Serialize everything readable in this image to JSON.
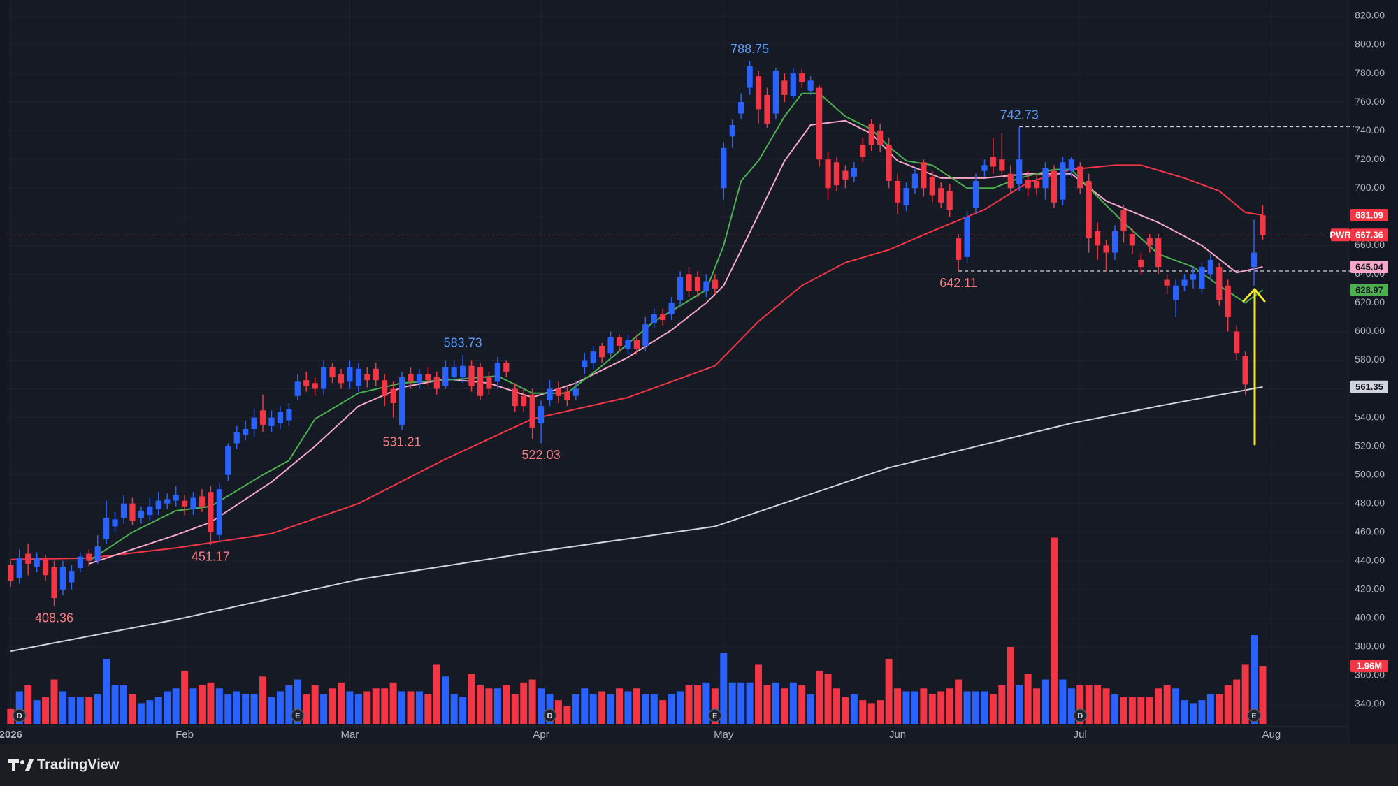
{
  "chart_data": {
    "type": "candlestick",
    "symbol": "PWR",
    "branding": "TradingView",
    "up_color": "#2962ff",
    "down_color": "#f23645",
    "grid": true,
    "last_price_line": true,
    "xlim": [
      -1.231,
      153.85
    ],
    "xticks": [
      {
        "value": 0,
        "label": "2026"
      },
      {
        "value": 20,
        "label": "Feb"
      },
      {
        "value": 39,
        "label": "Mar"
      },
      {
        "value": 61,
        "label": "Apr"
      },
      {
        "value": 82,
        "label": "May"
      },
      {
        "value": 102,
        "label": "Jun"
      },
      {
        "value": 123,
        "label": "Jul"
      },
      {
        "value": 145,
        "label": "Aug"
      }
    ],
    "ylim": [
      324.4,
      831.2
    ],
    "yticks": [
      {
        "value": 820,
        "label": "820.00"
      },
      {
        "value": 800,
        "label": "800.00"
      },
      {
        "value": 780,
        "label": "780.00"
      },
      {
        "value": 760,
        "label": "760.00"
      },
      {
        "value": 740,
        "label": "740.00"
      },
      {
        "value": 720,
        "label": "720.00"
      },
      {
        "value": 700,
        "label": "700.00"
      },
      {
        "value": 680,
        "label": "680.00"
      },
      {
        "value": 660,
        "label": "660.00"
      },
      {
        "value": 640,
        "label": "640.00"
      },
      {
        "value": 620,
        "label": "620.00"
      },
      {
        "value": 600,
        "label": "600.00"
      },
      {
        "value": 580,
        "label": "580.00"
      },
      {
        "value": 560,
        "label": "560.00"
      },
      {
        "value": 540,
        "label": "540.00"
      },
      {
        "value": 520,
        "label": "520.00"
      },
      {
        "value": 500,
        "label": "500.00"
      },
      {
        "value": 480,
        "label": "480.00"
      },
      {
        "value": 460,
        "label": "460.00"
      },
      {
        "value": 440,
        "label": "440.00"
      },
      {
        "value": 420,
        "label": "420.00"
      },
      {
        "value": 400,
        "label": "400.00"
      },
      {
        "value": 380,
        "label": "380.00"
      },
      {
        "value": 360,
        "label": "360.00"
      },
      {
        "value": 340,
        "label": "340.00"
      }
    ],
    "open": [
      437,
      428,
      445,
      436,
      441,
      436,
      420,
      425,
      435,
      445,
      440,
      455,
      464,
      470,
      480,
      470,
      472,
      476,
      480,
      482,
      482,
      476,
      485,
      488,
      458,
      500,
      522,
      528,
      532,
      545,
      534,
      536,
      538,
      555,
      566,
      564,
      560,
      575,
      570,
      565,
      562,
      570,
      574,
      566,
      560,
      535,
      570,
      564,
      570,
      568,
      562,
      568,
      568,
      576,
      575,
      568,
      565,
      578,
      560,
      555,
      556,
      536,
      552,
      560,
      558,
      555,
      575,
      578,
      590,
      585,
      596,
      588,
      594,
      590,
      606,
      612,
      612,
      622,
      640,
      638,
      628,
      636,
      700,
      736,
      752,
      770,
      778,
      765,
      752,
      775,
      764,
      780,
      768,
      770,
      720,
      718,
      712,
      708,
      730,
      745,
      740,
      730,
      705,
      688,
      700,
      718,
      708,
      700,
      698,
      665,
      652,
      686,
      712,
      722,
      720,
      710,
      703,
      706,
      705,
      700,
      712,
      692,
      712,
      715,
      705,
      670,
      660,
      655,
      685,
      668,
      650,
      665,
      665,
      636,
      622,
      632,
      636,
      630,
      640,
      645,
      632,
      600,
      583,
      645,
      681
    ],
    "high": [
      440,
      448,
      452,
      446,
      444,
      440,
      440,
      437,
      446,
      448,
      458,
      482,
      474,
      486,
      484,
      478,
      484,
      488,
      487,
      492,
      486,
      488,
      490,
      492,
      494,
      522,
      534,
      538,
      546,
      556,
      545,
      548,
      550,
      570,
      572,
      568,
      580,
      578,
      574,
      580,
      578,
      575,
      578,
      570,
      565,
      572,
      575,
      574,
      575,
      572,
      580,
      580,
      583.73,
      580,
      578,
      572,
      582,
      580,
      564,
      560,
      560,
      552,
      566,
      565,
      562,
      565,
      585,
      590,
      592,
      600,
      598,
      598,
      598,
      610,
      616,
      616,
      624,
      642,
      645,
      642,
      640,
      640,
      732,
      748,
      766,
      788.75,
      782,
      770,
      784,
      780,
      784,
      783,
      778,
      772,
      725,
      722,
      716,
      718,
      735,
      748,
      745,
      735,
      710,
      704,
      714,
      720,
      712,
      704,
      703,
      668,
      684,
      710,
      720,
      735,
      738,
      716,
      742.73,
      712,
      710,
      718,
      716,
      722,
      722,
      718,
      710,
      676,
      664,
      674,
      688,
      672,
      655,
      668,
      668,
      640,
      636,
      640,
      645,
      648,
      654,
      648,
      636,
      604,
      586,
      678,
      688
    ],
    "low": [
      422,
      424,
      430,
      432,
      426,
      408.36,
      416,
      420,
      432,
      436,
      438,
      452,
      460,
      466,
      465,
      466,
      468,
      472,
      476,
      478,
      472,
      472,
      474,
      451.17,
      454,
      496,
      518,
      524,
      526,
      530,
      530,
      532,
      534,
      552,
      558,
      555,
      556,
      564,
      560,
      560,
      558,
      561,
      562,
      548,
      540,
      531.21,
      560,
      560,
      562,
      556,
      560,
      565,
      564,
      558,
      552,
      556,
      560,
      568,
      544,
      544,
      525,
      522.03,
      548,
      550,
      548,
      552,
      570,
      574,
      578,
      582,
      586,
      584,
      584,
      586,
      602,
      604,
      608,
      618,
      624,
      624,
      624,
      626,
      692,
      728,
      748,
      765,
      745,
      742,
      748,
      760,
      762,
      770,
      765,
      715,
      692,
      698,
      700,
      704,
      718,
      726,
      725,
      700,
      682,
      684,
      696,
      694,
      690,
      686,
      680,
      642.11,
      648,
      682,
      708,
      710,
      708,
      696,
      698,
      694,
      695,
      692,
      686,
      688,
      708,
      696,
      655,
      650,
      642,
      650,
      662,
      654,
      640,
      655,
      640,
      626,
      610,
      628,
      630,
      626,
      636,
      618,
      600,
      580,
      556,
      632,
      664
    ],
    "close": [
      426,
      442,
      438,
      442,
      430,
      414,
      436,
      433,
      443,
      440,
      450,
      470,
      469,
      480,
      468,
      475,
      478,
      482,
      483,
      486,
      478,
      484,
      478,
      460,
      490,
      520,
      530,
      532,
      540,
      535,
      540,
      544,
      546,
      565,
      562,
      560,
      575,
      568,
      564,
      575,
      574,
      566,
      566,
      555,
      550,
      568,
      565,
      570,
      566,
      560,
      575,
      575,
      576,
      562,
      555,
      560,
      578,
      572,
      548,
      548,
      533,
      548,
      560,
      555,
      552,
      560,
      580,
      586,
      582,
      596,
      590,
      594,
      588,
      605,
      612,
      608,
      620,
      638,
      628,
      628,
      635,
      630,
      728,
      744,
      760,
      785,
      755,
      745,
      782,
      765,
      780,
      774,
      775,
      720,
      700,
      702,
      706,
      714,
      722,
      730,
      730,
      705,
      690,
      700,
      710,
      700,
      695,
      690,
      685,
      650,
      680,
      705,
      716,
      715,
      712,
      700,
      720,
      700,
      700,
      714,
      690,
      718,
      720,
      700,
      665,
      660,
      655,
      670,
      670,
      660,
      645,
      660,
      645,
      632,
      632,
      636,
      640,
      645,
      650,
      622,
      610,
      585,
      563,
      655,
      667.36
    ],
    "volume": [
      0.5,
      1.1,
      1.3,
      0.8,
      0.9,
      1.5,
      1.1,
      0.9,
      0.9,
      0.9,
      1.0,
      2.2,
      1.3,
      1.3,
      1.0,
      0.7,
      0.8,
      0.9,
      1.1,
      1.2,
      1.8,
      1.2,
      1.3,
      1.4,
      1.2,
      1.0,
      1.1,
      1.0,
      1.0,
      1.6,
      0.9,
      1.1,
      1.3,
      1.5,
      1.0,
      1.3,
      1.0,
      1.2,
      1.4,
      1.1,
      1.0,
      1.1,
      1.2,
      1.2,
      1.4,
      1.1,
      1.1,
      1.1,
      1.0,
      2.0,
      1.6,
      1.0,
      0.9,
      1.7,
      1.3,
      1.2,
      1.2,
      1.3,
      1.0,
      1.4,
      1.5,
      1.2,
      1.0,
      0.8,
      0.6,
      1.0,
      1.2,
      1.0,
      1.1,
      1.0,
      1.2,
      1.1,
      1.2,
      1.0,
      1.0,
      0.8,
      1.0,
      1.1,
      1.3,
      1.3,
      1.4,
      1.2,
      2.4,
      1.4,
      1.4,
      1.4,
      2.0,
      1.3,
      1.4,
      1.2,
      1.4,
      1.3,
      1.0,
      1.8,
      1.7,
      1.2,
      0.9,
      1.0,
      0.8,
      0.7,
      0.8,
      2.2,
      1.2,
      1.1,
      1.1,
      1.2,
      1.0,
      1.1,
      1.2,
      1.5,
      1.1,
      1.1,
      1.1,
      1.0,
      1.3,
      2.6,
      1.3,
      1.7,
      1.2,
      1.5,
      6.3,
      1.5,
      1.2,
      1.3,
      1.3,
      1.3,
      1.2,
      1.0,
      0.9,
      0.9,
      0.9,
      0.9,
      1.2,
      1.3,
      1.2,
      0.8,
      0.7,
      0.8,
      1.0,
      1.0,
      1.3,
      1.5,
      2.0,
      3.0,
      1.96
    ],
    "volume_ylim": [
      0,
      6.43
    ],
    "volume_last_label": "1.96M",
    "ma": [
      {
        "color": "#f23645",
        "badge_text_color": "#ffffff",
        "x": [
          0,
          9,
          19,
          30,
          40,
          50,
          60,
          71,
          81,
          86,
          91,
          96,
          101,
          106,
          112,
          117,
          122,
          127,
          130,
          135,
          139,
          142,
          144
        ],
        "values": [
          441,
          442,
          449,
          459,
          480,
          511,
          539,
          554,
          576,
          607,
          632,
          648,
          657,
          670,
          685,
          704,
          713,
          716,
          716,
          707,
          698,
          683,
          681.09
        ]
      },
      {
        "color": "#f7a8c8",
        "badge_text_color": "#131722",
        "x": [
          9,
          19,
          23,
          30,
          35,
          40,
          45,
          50,
          55,
          60,
          65,
          71,
          76,
          80,
          82,
          85,
          89,
          92,
          96,
          99,
          102,
          107,
          112,
          117,
          122,
          126,
          132,
          137,
          141,
          144
        ],
        "values": [
          438,
          458,
          467,
          495,
          520,
          548,
          561,
          567,
          564,
          554,
          564,
          582,
          601,
          620,
          632,
          669,
          719,
          744,
          747,
          738,
          719,
          707,
          707,
          710,
          710,
          691,
          676,
          660,
          641,
          645.04
        ]
      },
      {
        "color": "#4caf50",
        "badge_text_color": "#131722",
        "x": [
          9,
          14,
          19,
          23,
          29,
          32,
          35,
          40,
          45,
          52,
          56,
          60,
          64,
          68,
          74,
          80,
          82,
          84,
          86,
          89,
          91,
          93,
          96,
          99,
          101,
          103,
          106,
          110,
          113,
          116,
          120,
          122,
          125,
          128,
          132,
          136,
          139,
          142,
          144
        ],
        "values": [
          440,
          460,
          475,
          478,
          500,
          510,
          539,
          557,
          564,
          567,
          569,
          557,
          557,
          576,
          607,
          629,
          660,
          705,
          719,
          750,
          766,
          766,
          750,
          741,
          729,
          719,
          716,
          700,
          700,
          707,
          713,
          713,
          694,
          676,
          654,
          645,
          632,
          620,
          628.97
        ]
      },
      {
        "color": "#d1d4dc",
        "badge_text_color": "#131722",
        "x": [
          0,
          19,
          40,
          60,
          81,
          101,
          122,
          132,
          144
        ],
        "values": [
          377,
          399,
          427,
          446,
          464,
          505,
          536,
          548,
          561.35
        ]
      }
    ],
    "high_labels": [
      85,
      116,
      52
    ],
    "low_labels": [
      5,
      23,
      45,
      61,
      109
    ],
    "level_lines": [
      {
        "series": "high",
        "index": 116
      },
      {
        "series": "low",
        "index": 109
      }
    ],
    "events": {
      "x": [
        1,
        33,
        62,
        81,
        123,
        143
      ],
      "labels": [
        "D",
        "E",
        "D",
        "E",
        "D",
        "E"
      ]
    }
  }
}
